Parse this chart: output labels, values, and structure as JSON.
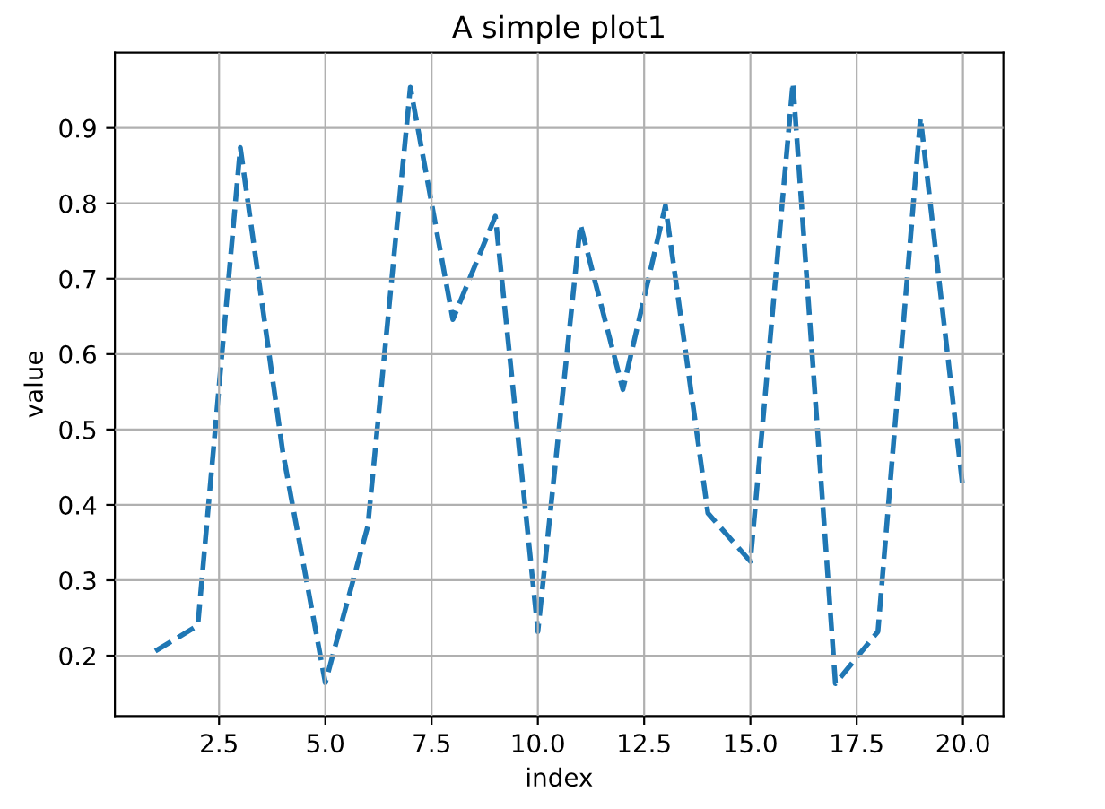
{
  "chart_data": {
    "type": "line",
    "title": "A simple plot1",
    "xlabel": "index",
    "ylabel": "value",
    "x": [
      1,
      2,
      3,
      4,
      5,
      6,
      7,
      8,
      9,
      10,
      11,
      12,
      13,
      14,
      15,
      16,
      17,
      18,
      19,
      20
    ],
    "series": [
      {
        "color": "#1f77b4",
        "values": [
          0.206,
          0.24,
          0.874,
          0.47,
          0.164,
          0.372,
          0.954,
          0.646,
          0.783,
          0.232,
          0.772,
          0.553,
          0.797,
          0.389,
          0.325,
          0.96,
          0.163,
          0.232,
          0.914,
          0.421
        ]
      }
    ],
    "xlim": [
      0.05,
      20.95
    ],
    "ylim": [
      0.12,
      1.0
    ],
    "xticks": [
      {
        "value": 2.5,
        "label": "2.5"
      },
      {
        "value": 5,
        "label": "5.0"
      },
      {
        "value": 7.5,
        "label": "7.5"
      },
      {
        "value": 10,
        "label": "10.0"
      },
      {
        "value": 12.5,
        "label": "12.5"
      },
      {
        "value": 15,
        "label": "15.0"
      },
      {
        "value": 17.5,
        "label": "17.5"
      },
      {
        "value": 20,
        "label": "20.0"
      }
    ],
    "yticks": [
      0.2,
      0.3,
      0.4,
      0.5,
      0.6,
      0.7,
      0.8,
      0.9
    ],
    "grid": true,
    "line_style": "dashed",
    "marker": "none"
  }
}
